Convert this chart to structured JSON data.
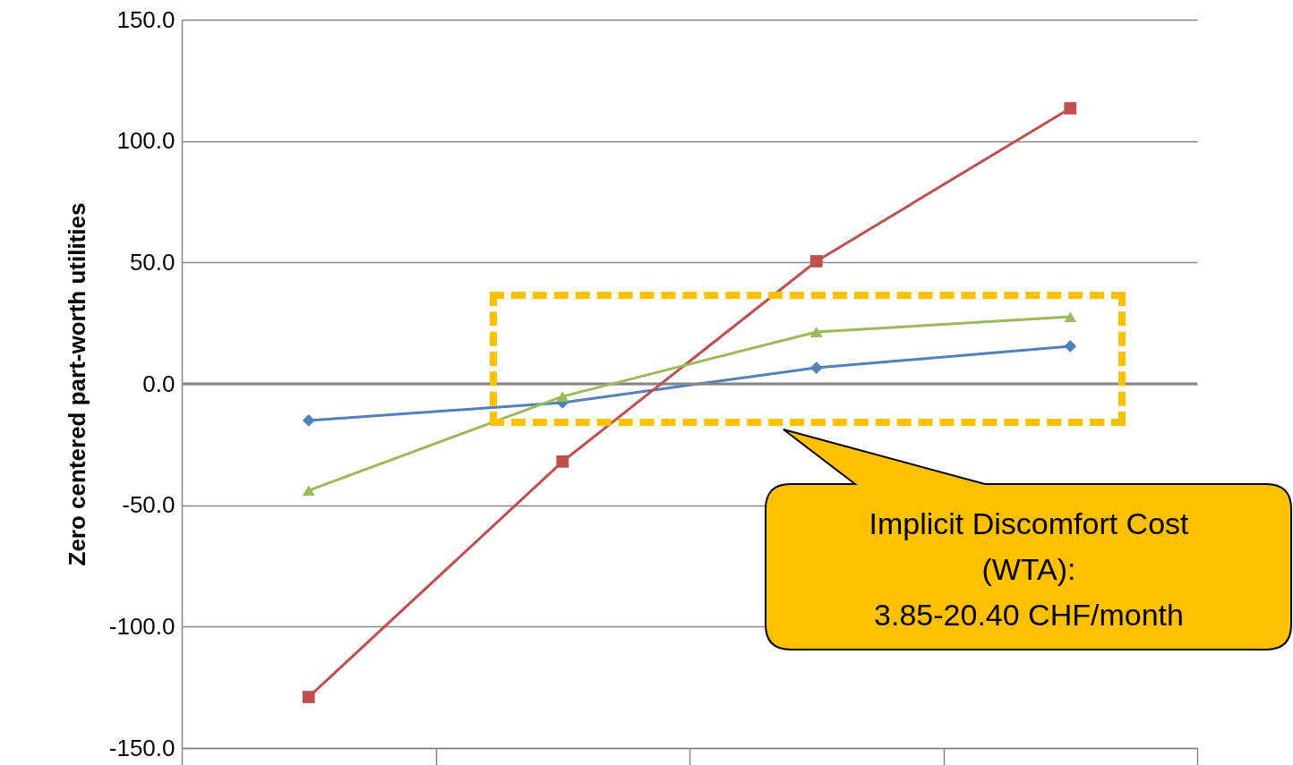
{
  "chart_data": {
    "type": "line",
    "ylabel": "Zero centered part-worth utilities",
    "categories": [
      null,
      null,
      null,
      null
    ],
    "series": [
      {
        "color": "#4f81bd",
        "marker": "diamond",
        "values": [
          -15.1,
          -7.7,
          6.6,
          15.5
        ]
      },
      {
        "color": "#c0504d",
        "marker": "square",
        "values": [
          -129,
          -32,
          50.5,
          113.5
        ]
      },
      {
        "color": "#9bbb59",
        "marker": "triangle",
        "values": [
          -43.9,
          -5.2,
          21.4,
          27.6
        ]
      }
    ],
    "ylim": [
      -150,
      150
    ],
    "yticks": [
      {
        "value": -150,
        "label": "-150.0"
      },
      {
        "value": -100,
        "label": "-100.0"
      },
      {
        "value": -50,
        "label": "-50.0"
      },
      {
        "value": 0,
        "label": "0.0"
      },
      {
        "value": 50,
        "label": "50.0"
      },
      {
        "value": 100,
        "label": "100.0"
      },
      {
        "value": 150,
        "label": "150.0"
      }
    ],
    "grid": "y",
    "tick_labels": "y",
    "line_style": "solid",
    "ref_lines": [
      {
        "axis": "y",
        "value": 0,
        "color": "#868686"
      }
    ],
    "annotations": [
      "Implicit Discomfort Cost\n(WTA):\n3.85-20.40 CHF/month"
    ]
  }
}
